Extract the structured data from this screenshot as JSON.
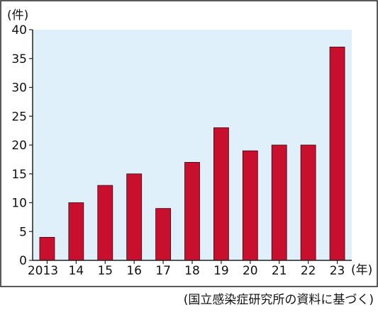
{
  "chart_data": {
    "type": "bar",
    "y_unit": "(件)",
    "x_unit": "(年)",
    "categories": [
      "2013",
      "14",
      "15",
      "16",
      "17",
      "18",
      "19",
      "20",
      "21",
      "22",
      "23"
    ],
    "values": [
      4,
      10,
      13,
      15,
      9,
      17,
      23,
      19,
      20,
      20,
      37
    ],
    "ylim": [
      0,
      40
    ],
    "yticks": [
      "0",
      "5",
      "10",
      "15",
      "20",
      "25",
      "30",
      "35",
      "40"
    ],
    "grid": false,
    "legend": "none",
    "source": "(国立感染症研究所の資料に基づく)",
    "colors": {
      "bar": "#c8102e",
      "plot_bg": "#dff0fa",
      "frame": "#222222"
    }
  }
}
